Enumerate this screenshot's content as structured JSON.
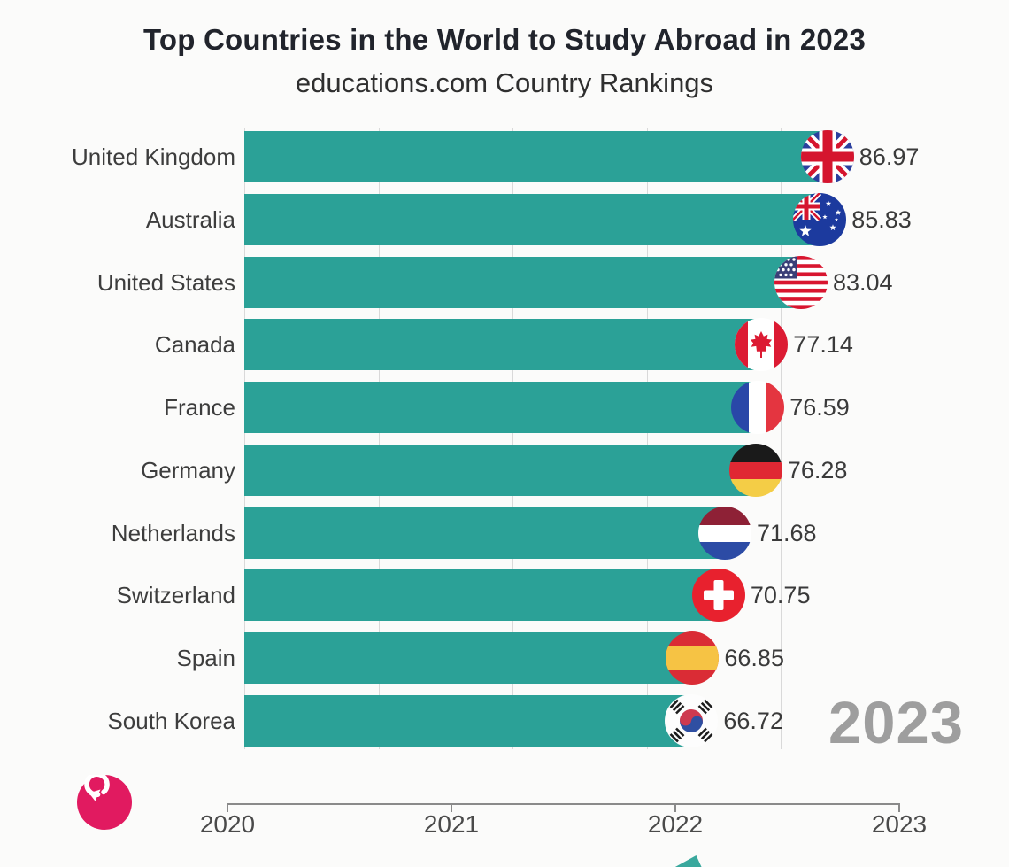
{
  "header": {
    "title": "Top Countries in the World to Study Abroad in 2023",
    "subtitle": "educations.com Country Rankings"
  },
  "chart_data": {
    "type": "bar",
    "orientation": "horizontal",
    "title": "Top Countries in the World to Study Abroad in 2023",
    "subtitle": "educations.com Country Rankings",
    "categories": [
      "United Kingdom",
      "Australia",
      "United States",
      "Canada",
      "France",
      "Germany",
      "Netherlands",
      "Switzerland",
      "Spain",
      "South Korea"
    ],
    "values": [
      86.97,
      85.83,
      83.04,
      77.14,
      76.59,
      76.28,
      71.68,
      70.75,
      66.85,
      66.72
    ],
    "value_labels": [
      "86.97",
      "85.83",
      "83.04",
      "77.14",
      "76.59",
      "76.28",
      "71.68",
      "70.75",
      "66.85",
      "66.72"
    ],
    "flags": [
      "united-kingdom",
      "australia",
      "united-states",
      "canada",
      "france",
      "germany",
      "netherlands",
      "switzerland",
      "spain",
      "south-korea"
    ],
    "xlabel": "",
    "ylabel": "",
    "value_axis": {
      "min": 0,
      "max": 87.5,
      "gridlines": [
        0,
        20,
        40,
        60,
        80
      ],
      "tick_labels_visible": false
    },
    "grid": "on",
    "legend": "none",
    "timeline": {
      "years": [
        "2020",
        "2021",
        "2022",
        "2023"
      ],
      "current_year": "2023"
    },
    "colors": {
      "bar": "#2ba197",
      "background": "#fbfbfa",
      "watermark": "#9e9e9e",
      "replay_button": "#e11a60",
      "gridline": "#d9d9d9"
    }
  }
}
